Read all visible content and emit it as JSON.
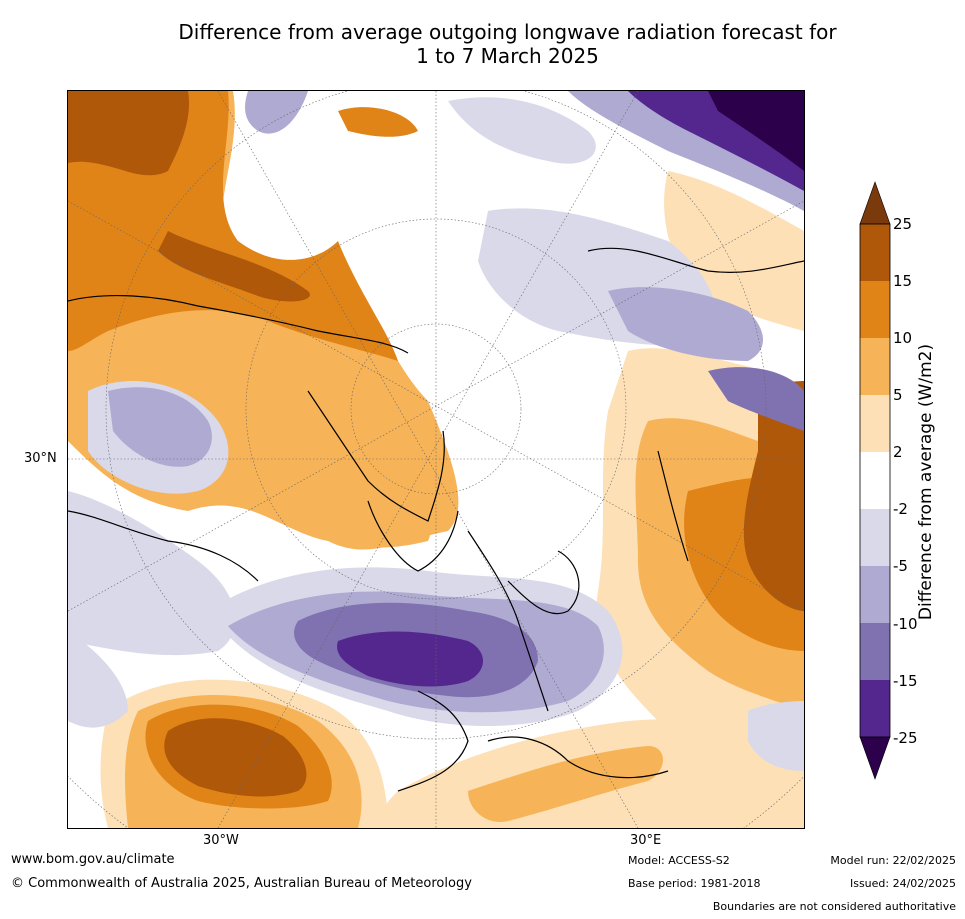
{
  "title_line1": "Difference from average outgoing longwave radiation forecast for",
  "title_line2": "1 to 7 March 2025",
  "lat_label": "30°N",
  "lon_labels": [
    "30°W",
    "30°E"
  ],
  "colorbar": {
    "label": "Difference from average (W/m2)",
    "ticks": [
      "25",
      "15",
      "10",
      "5",
      "2",
      "-2",
      "-5",
      "-10",
      "-15",
      "-25"
    ],
    "colors": {
      "gt25": "#7a3a0c",
      "15_25": "#b0580a",
      "10_15": "#e08418",
      "5_10": "#f7b358",
      "2_5": "#fde0b6",
      "neutral": "#ffffff",
      "m5_m2": "#d9d9ea",
      "m10_m5": "#afaad2",
      "m15_m10": "#8072b0",
      "m25_m15": "#54278f",
      "lt_m25": "#2d004b"
    }
  },
  "footer": {
    "website": "www.bom.gov.au/climate",
    "copyright": "© Commonwealth of Australia 2025, Australian Bureau of Meteorology",
    "model": "Model: ACCESS-S2",
    "base_period": "Base period: 1981-2018",
    "model_run": "Model run: 22/02/2025",
    "issued": "Issued: 24/02/2025",
    "disclaimer": "Boundaries are not considered authoritative"
  }
}
